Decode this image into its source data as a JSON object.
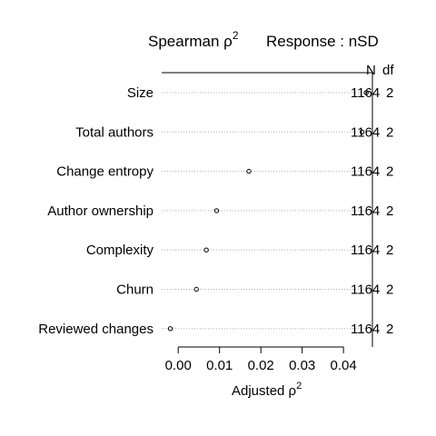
{
  "chart_data": {
    "type": "scatter",
    "title_left": "Spearman ρ",
    "title_left_sup": "2",
    "title_right": "Response : nSD",
    "xlabel": "Adjusted ρ",
    "xlabel_sup": "2",
    "xlim": [
      -0.004,
      0.047
    ],
    "xticks": [
      0.0,
      0.01,
      0.02,
      0.03,
      0.04
    ],
    "xtick_labels": [
      "0.00",
      "0.01",
      "0.02",
      "0.03",
      "0.04"
    ],
    "grid": "dotted horizontal",
    "column_headers": {
      "n": "N",
      "df": "df"
    },
    "rows": [
      {
        "label": "Size",
        "value": 0.0455,
        "n": "1164",
        "df": "2"
      },
      {
        "label": "Total authors",
        "value": 0.0445,
        "n": "1164",
        "df": "2"
      },
      {
        "label": "Change entropy",
        "value": 0.0171,
        "n": "1164",
        "df": "2"
      },
      {
        "label": "Author ownership",
        "value": 0.0093,
        "n": "1164",
        "df": "2"
      },
      {
        "label": "Complexity",
        "value": 0.0068,
        "n": "1164",
        "df": "2"
      },
      {
        "label": "Churn",
        "value": 0.0044,
        "n": "1164",
        "df": "2"
      },
      {
        "label": "Reviewed changes",
        "value": -0.0019,
        "n": "1164",
        "df": "2"
      }
    ]
  }
}
